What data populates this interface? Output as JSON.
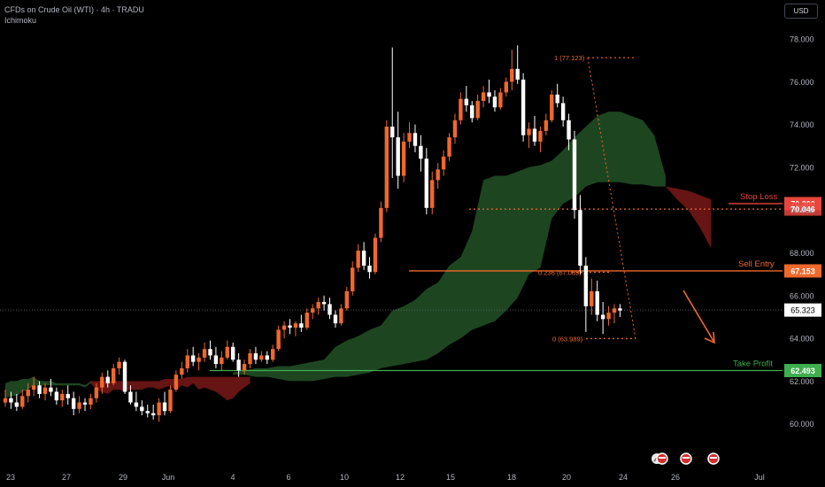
{
  "header": {
    "symbol_line": "CFDs on Crude Oil (WTI) · 4h · TRADU",
    "indicator": "Ichimoku",
    "currency": "USD"
  },
  "colors": {
    "bull": "#f0682b",
    "bear": "#ffffff",
    "cloud_green": "#1f4a22",
    "cloud_red": "#6b1515",
    "sell_line": "#f0682b",
    "stop_line": "#e8453c",
    "tp_line": "#3fae4e"
  },
  "chart_data": {
    "type": "candlestick",
    "title": "",
    "ylim": [
      58.8,
      79.2
    ],
    "y_ticks": [
      "60.000",
      "62.000",
      "64.000",
      "66.000",
      "68.000",
      "70.000",
      "72.000",
      "74.000",
      "76.000",
      "78.000"
    ],
    "x_ticks": [
      "23",
      "27",
      "29",
      "Jun",
      "4",
      "6",
      "10",
      "12",
      "15",
      "18",
      "20",
      "24",
      "26",
      "Jul"
    ],
    "last_price": "65.323",
    "levels": [
      {
        "name": "Stop Loss",
        "value": 70.3,
        "label": "70.300"
      },
      {
        "name": "Sell Entry",
        "value": 67.153,
        "label": "67.153"
      },
      {
        "name": "Take Profit",
        "value": 62.493,
        "label": "62.493"
      },
      {
        "name": "",
        "value": 70.046,
        "label": "70.046"
      }
    ],
    "fib": [
      {
        "label": "1 (77.123)",
        "value": 77.123
      },
      {
        "label": "0.236 (67.089)",
        "value": 67.089
      },
      {
        "label": "0 (63.989)",
        "value": 63.989
      }
    ],
    "candles": [
      [
        61.0,
        61.6,
        60.8,
        61.2
      ],
      [
        61.2,
        61.5,
        60.7,
        61.0
      ],
      [
        61.0,
        61.4,
        60.6,
        60.8
      ],
      [
        60.8,
        61.6,
        60.7,
        61.3
      ],
      [
        61.3,
        61.9,
        61.0,
        61.6
      ],
      [
        61.6,
        62.2,
        61.3,
        61.8
      ],
      [
        61.8,
        62.0,
        61.2,
        61.4
      ],
      [
        61.4,
        61.9,
        61.1,
        61.7
      ],
      [
        61.7,
        62.1,
        61.3,
        61.5
      ],
      [
        61.5,
        61.7,
        60.9,
        61.1
      ],
      [
        61.1,
        61.6,
        60.8,
        61.4
      ],
      [
        61.4,
        61.8,
        60.9,
        61.2
      ],
      [
        61.2,
        61.5,
        60.4,
        60.7
      ],
      [
        60.7,
        61.3,
        60.5,
        61.0
      ],
      [
        61.0,
        61.2,
        60.6,
        60.9
      ],
      [
        60.9,
        61.4,
        60.7,
        61.2
      ],
      [
        61.2,
        61.9,
        61.0,
        61.7
      ],
      [
        61.7,
        62.4,
        61.4,
        62.2
      ],
      [
        62.2,
        62.5,
        61.7,
        61.9
      ],
      [
        61.9,
        62.8,
        61.8,
        62.6
      ],
      [
        62.6,
        63.1,
        62.3,
        62.9
      ],
      [
        62.9,
        63.0,
        61.4,
        61.5
      ],
      [
        61.5,
        61.8,
        60.9,
        61.0
      ],
      [
        61.0,
        61.5,
        60.6,
        60.8
      ],
      [
        60.8,
        61.1,
        60.4,
        60.6
      ],
      [
        60.6,
        60.9,
        60.3,
        60.5
      ],
      [
        60.5,
        60.9,
        60.2,
        60.4
      ],
      [
        60.4,
        61.2,
        60.1,
        61.0
      ],
      [
        61.0,
        61.5,
        60.4,
        60.6
      ],
      [
        60.6,
        61.8,
        60.5,
        61.6
      ],
      [
        61.6,
        62.5,
        61.5,
        62.3
      ],
      [
        62.3,
        62.9,
        62.1,
        62.6
      ],
      [
        62.6,
        63.5,
        62.4,
        63.2
      ],
      [
        63.2,
        63.6,
        62.7,
        62.9
      ],
      [
        62.9,
        63.3,
        62.5,
        63.1
      ],
      [
        63.1,
        63.8,
        62.9,
        63.5
      ],
      [
        63.5,
        63.9,
        63.0,
        63.2
      ],
      [
        63.2,
        63.6,
        62.6,
        62.8
      ],
      [
        62.8,
        63.4,
        62.5,
        63.1
      ],
      [
        63.1,
        63.9,
        63.0,
        63.6
      ],
      [
        63.6,
        63.8,
        62.9,
        63.0
      ],
      [
        63.0,
        63.3,
        62.2,
        62.5
      ],
      [
        62.5,
        63.0,
        62.3,
        62.8
      ],
      [
        62.8,
        63.5,
        62.6,
        63.3
      ],
      [
        63.3,
        63.6,
        62.8,
        63.0
      ],
      [
        63.0,
        63.4,
        62.9,
        63.2
      ],
      [
        63.2,
        63.4,
        62.8,
        63.0
      ],
      [
        63.0,
        63.7,
        62.9,
        63.5
      ],
      [
        63.5,
        64.6,
        63.4,
        64.4
      ],
      [
        64.4,
        64.8,
        64.0,
        64.6
      ],
      [
        64.6,
        64.9,
        64.2,
        64.5
      ],
      [
        64.5,
        64.8,
        64.1,
        64.7
      ],
      [
        64.7,
        65.1,
        64.3,
        64.5
      ],
      [
        64.5,
        65.4,
        64.4,
        65.2
      ],
      [
        65.2,
        65.6,
        64.9,
        65.4
      ],
      [
        65.4,
        65.9,
        65.1,
        65.7
      ],
      [
        65.7,
        66.0,
        65.3,
        65.6
      ],
      [
        65.6,
        65.9,
        64.9,
        65.1
      ],
      [
        65.1,
        65.3,
        64.5,
        64.7
      ],
      [
        64.7,
        65.6,
        64.6,
        65.4
      ],
      [
        65.4,
        66.4,
        65.3,
        66.2
      ],
      [
        66.2,
        67.6,
        66.0,
        67.3
      ],
      [
        67.3,
        68.4,
        67.1,
        68.1
      ],
      [
        68.1,
        68.5,
        67.2,
        67.4
      ],
      [
        67.4,
        67.8,
        66.8,
        67.1
      ],
      [
        67.1,
        68.9,
        67.0,
        68.7
      ],
      [
        68.7,
        70.4,
        68.5,
        70.1
      ],
      [
        70.1,
        74.2,
        69.9,
        73.9
      ],
      [
        73.9,
        77.6,
        71.5,
        73.4
      ],
      [
        73.4,
        74.6,
        71.0,
        71.6
      ],
      [
        71.6,
        73.6,
        71.3,
        73.2
      ],
      [
        73.2,
        74.1,
        72.9,
        73.6
      ],
      [
        73.6,
        74.0,
        72.7,
        73.0
      ],
      [
        73.0,
        73.5,
        71.8,
        72.4
      ],
      [
        72.4,
        72.9,
        69.8,
        70.1
      ],
      [
        70.1,
        71.8,
        69.8,
        71.4
      ],
      [
        71.4,
        72.2,
        71.0,
        71.9
      ],
      [
        71.9,
        72.8,
        71.6,
        72.5
      ],
      [
        72.5,
        73.6,
        72.3,
        73.4
      ],
      [
        73.4,
        74.5,
        73.1,
        74.2
      ],
      [
        74.2,
        75.5,
        74.0,
        75.2
      ],
      [
        75.2,
        75.8,
        74.6,
        74.9
      ],
      [
        74.9,
        75.1,
        74.1,
        74.3
      ],
      [
        74.3,
        75.4,
        74.2,
        75.1
      ],
      [
        75.1,
        75.8,
        74.8,
        75.5
      ],
      [
        75.5,
        76.1,
        75.0,
        75.3
      ],
      [
        75.3,
        75.6,
        74.6,
        74.8
      ],
      [
        74.8,
        75.7,
        74.7,
        75.5
      ],
      [
        75.5,
        76.2,
        75.3,
        76.0
      ],
      [
        76.0,
        77.5,
        75.6,
        76.6
      ],
      [
        76.6,
        77.7,
        75.9,
        76.1
      ],
      [
        76.1,
        76.4,
        73.2,
        73.5
      ],
      [
        73.5,
        74.1,
        72.9,
        73.8
      ],
      [
        73.8,
        74.4,
        73.0,
        73.2
      ],
      [
        73.2,
        73.9,
        72.7,
        73.7
      ],
      [
        73.7,
        74.5,
        73.5,
        74.2
      ],
      [
        74.2,
        75.6,
        74.1,
        75.4
      ],
      [
        75.4,
        75.9,
        74.8,
        75.0
      ],
      [
        75.0,
        75.3,
        73.9,
        74.2
      ],
      [
        74.2,
        74.5,
        72.8,
        73.3
      ],
      [
        73.3,
        73.7,
        69.6,
        70.0
      ],
      [
        70.0,
        70.7,
        67.0,
        67.4
      ],
      [
        67.4,
        67.8,
        64.3,
        65.5
      ],
      [
        65.5,
        66.8,
        65.1,
        66.2
      ],
      [
        66.2,
        66.7,
        64.8,
        65.1
      ],
      [
        65.1,
        65.7,
        64.2,
        64.9
      ],
      [
        64.9,
        65.5,
        64.6,
        65.2
      ],
      [
        65.2,
        65.6,
        64.7,
        65.4
      ],
      [
        65.4,
        65.6,
        65.0,
        65.3
      ]
    ],
    "cloud_green": {
      "start": 0,
      "step": 1,
      "pairs": [
        [
          61.9,
          61.2
        ],
        [
          62.0,
          61.3
        ],
        [
          62.0,
          61.3
        ],
        [
          62.1,
          61.5
        ],
        [
          62.1,
          61.6
        ],
        [
          62.2,
          61.8
        ],
        [
          62.0,
          61.8
        ],
        [
          62.0,
          61.8
        ],
        [
          62.0,
          61.8
        ],
        [
          61.9,
          61.8
        ],
        [
          61.9,
          61.8
        ],
        [
          61.9,
          61.8
        ],
        [
          61.9,
          61.8
        ],
        [
          61.9,
          61.8
        ],
        [
          61.8,
          61.7
        ],
        [
          62.0,
          61.9
        ]
      ]
    },
    "cloud_red": {
      "start": 15,
      "pairs": [
        [
          62.0,
          61.9
        ],
        [
          62.0,
          61.6
        ],
        [
          62.0,
          61.5
        ],
        [
          62.0,
          61.4
        ],
        [
          62.0,
          61.6
        ],
        [
          62.0,
          61.6
        ],
        [
          62.0,
          61.5
        ],
        [
          62.0,
          61.6
        ],
        [
          62.0,
          61.6
        ],
        [
          62.0,
          61.6
        ],
        [
          62.0,
          61.7
        ],
        [
          62.0,
          61.7
        ],
        [
          62.0,
          61.6
        ],
        [
          62.1,
          61.7
        ],
        [
          62.1,
          61.8
        ],
        [
          62.1,
          61.6
        ],
        [
          62.1,
          61.8
        ],
        [
          62.2,
          61.7
        ],
        [
          62.2,
          61.9
        ],
        [
          62.2,
          61.6
        ],
        [
          62.2,
          61.7
        ],
        [
          62.2,
          61.6
        ],
        [
          62.2,
          61.5
        ],
        [
          62.2,
          61.3
        ],
        [
          62.2,
          61.1
        ],
        [
          62.2,
          61.2
        ],
        [
          62.2,
          61.5
        ],
        [
          62.2,
          61.7
        ],
        [
          62.2,
          61.9
        ]
      ]
    },
    "cloud_green_main": [
      [
        40,
        62.4,
        62.3
      ],
      [
        42,
        62.5,
        62.3
      ],
      [
        44,
        62.6,
        62.2
      ],
      [
        46,
        62.6,
        62.2
      ],
      [
        48,
        62.7,
        62.1
      ],
      [
        50,
        62.7,
        62.0
      ],
      [
        52,
        62.8,
        62.0
      ],
      [
        54,
        62.9,
        62.0
      ],
      [
        56,
        63.0,
        62.1
      ],
      [
        58,
        63.6,
        62.2
      ],
      [
        60,
        63.9,
        62.2
      ],
      [
        62,
        64.1,
        62.3
      ],
      [
        64,
        64.4,
        62.4
      ],
      [
        66,
        64.6,
        62.6
      ],
      [
        68,
        65.3,
        62.7
      ],
      [
        70,
        65.5,
        62.8
      ],
      [
        72,
        65.8,
        62.9
      ],
      [
        74,
        66.3,
        63.0
      ],
      [
        76,
        66.6,
        63.3
      ],
      [
        78,
        67.4,
        63.7
      ],
      [
        80,
        67.8,
        64.0
      ],
      [
        82,
        69.0,
        64.4
      ],
      [
        84,
        71.4,
        64.6
      ],
      [
        86,
        71.6,
        64.8
      ],
      [
        88,
        71.6,
        65.3
      ],
      [
        90,
        71.8,
        65.9
      ],
      [
        92,
        72.0,
        67.0
      ],
      [
        94,
        72.1,
        67.3
      ],
      [
        96,
        72.3,
        69.6
      ],
      [
        98,
        72.8,
        70.3
      ],
      [
        100,
        73.4,
        70.6
      ],
      [
        102,
        73.9,
        71.1
      ],
      [
        104,
        74.4,
        71.3
      ],
      [
        106,
        74.6,
        71.3
      ],
      [
        108,
        74.6,
        71.3
      ],
      [
        110,
        74.4,
        71.2
      ],
      [
        112,
        74.2,
        71.2
      ],
      [
        114,
        73.5,
        71.1
      ],
      [
        116,
        71.6,
        71.1
      ]
    ],
    "cloud_red_tail": [
      [
        116,
        71.1,
        71.1
      ],
      [
        118,
        71.0,
        70.5
      ],
      [
        120,
        70.9,
        70.0
      ],
      [
        122,
        70.7,
        69.2
      ],
      [
        124,
        70.5,
        68.2
      ]
    ]
  }
}
